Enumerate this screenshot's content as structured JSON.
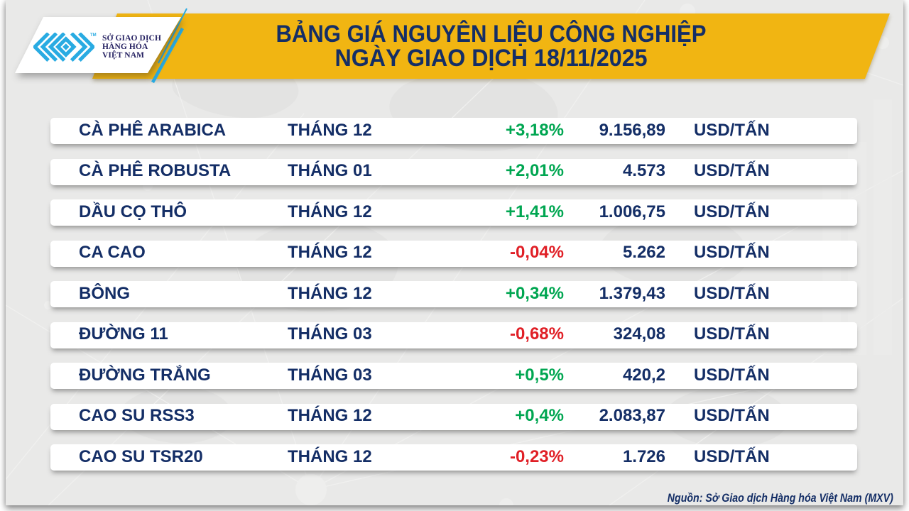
{
  "header": {
    "title_line1": "BẢNG GIÁ NGUYÊN LIỆU CÔNG NGHIỆP",
    "title_line2": "NGÀY GIAO DỊCH 18/11/2025",
    "logo": {
      "org_line1": "SỞ GIAO DỊCH",
      "org_line2": "HÀNG HÓA",
      "org_line3": "VIỆT NAM",
      "trademark": "TM"
    }
  },
  "table": {
    "rows": [
      {
        "name": "CÀ PHÊ ARABICA",
        "month": "THÁNG 12",
        "change": "+3,18%",
        "direction": "up",
        "price": "9.156,89",
        "unit": "USD/TẤN"
      },
      {
        "name": "CÀ PHÊ ROBUSTA",
        "month": "THÁNG 01",
        "change": "+2,01%",
        "direction": "up",
        "price": "4.573",
        "unit": "USD/TẤN"
      },
      {
        "name": "DẦU CỌ THÔ",
        "month": "THÁNG 12",
        "change": "+1,41%",
        "direction": "up",
        "price": "1.006,75",
        "unit": "USD/TẤN"
      },
      {
        "name": "CA CAO",
        "month": "THÁNG 12",
        "change": "-0,04%",
        "direction": "down",
        "price": "5.262",
        "unit": "USD/TẤN"
      },
      {
        "name": "BÔNG",
        "month": "THÁNG 12",
        "change": "+0,34%",
        "direction": "up",
        "price": "1.379,43",
        "unit": "USD/TẤN"
      },
      {
        "name": "ĐƯỜNG 11",
        "month": "THÁNG 03",
        "change": "-0,68%",
        "direction": "down",
        "price": "324,08",
        "unit": "USD/TẤN"
      },
      {
        "name": "ĐƯỜNG TRẮNG",
        "month": "THÁNG 03",
        "change": "+0,5%",
        "direction": "up",
        "price": "420,2",
        "unit": "USD/TẤN"
      },
      {
        "name": "CAO SU RSS3",
        "month": "THÁNG 12",
        "change": "+0,4%",
        "direction": "up",
        "price": "2.083,87",
        "unit": "USD/TẤN"
      },
      {
        "name": "CAO SU TSR20",
        "month": "THÁNG 12",
        "change": "-0,23%",
        "direction": "down",
        "price": "1.726",
        "unit": "USD/TẤN"
      }
    ]
  },
  "footer": {
    "source": "Nguồn: Sở Giao dịch Hàng hóa Việt Nam (MXV)"
  },
  "colors": {
    "banner_yellow": "#F1B512",
    "navy": "#142E66",
    "logo_navy": "#262262",
    "green": "#00A651",
    "red": "#E01F26",
    "cyan": "#29ABE2",
    "card_bg": "#E9E9E8"
  }
}
